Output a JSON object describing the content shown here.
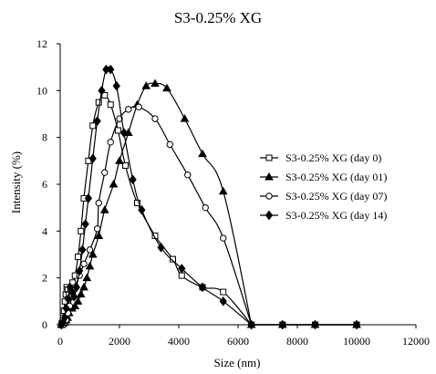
{
  "chart_data": {
    "type": "line",
    "title": "S3-0.25% XG",
    "xlabel": "Size (nm)",
    "ylabel": "Intensity  (%)",
    "xlim": [
      0,
      12000
    ],
    "ylim": [
      0,
      12
    ],
    "xticks": [
      0,
      2000,
      4000,
      6000,
      8000,
      10000,
      12000
    ],
    "yticks": [
      0,
      2,
      4,
      6,
      8,
      10,
      12
    ],
    "grid": false,
    "legend_position": "right",
    "series": [
      {
        "name": "S3-0.25% XG (day 0)",
        "marker": "square-open",
        "points": [
          [
            40,
            0
          ],
          [
            60,
            0.05
          ],
          [
            80,
            0.1
          ],
          [
            100,
            0.3
          ],
          [
            130,
            0.6
          ],
          [
            160,
            1.0
          ],
          [
            190,
            1.3
          ],
          [
            220,
            1.6
          ],
          [
            255,
            1.5
          ],
          [
            300,
            1.3
          ],
          [
            350,
            1.5
          ],
          [
            420,
            1.8
          ],
          [
            500,
            2.1
          ],
          [
            600,
            2.9
          ],
          [
            700,
            4.0
          ],
          [
            800,
            5.4
          ],
          [
            950,
            7.0
          ],
          [
            1100,
            8.5
          ],
          [
            1300,
            9.5
          ],
          [
            1500,
            9.8
          ],
          [
            1700,
            9.4
          ],
          [
            1950,
            8.3
          ],
          [
            2200,
            6.8
          ],
          [
            2600,
            5.2
          ],
          [
            3200,
            3.8
          ],
          [
            3800,
            2.8
          ],
          [
            4100,
            2.1
          ],
          [
            4800,
            1.6
          ],
          [
            5500,
            1.4
          ],
          [
            6450,
            0
          ],
          [
            7500,
            0
          ],
          [
            8600,
            0
          ],
          [
            10000,
            0
          ]
        ]
      },
      {
        "name": "S3-0.25% XG (day 01)",
        "marker": "triangle-filled",
        "points": [
          [
            40,
            0
          ],
          [
            100,
            0.05
          ],
          [
            150,
            0.1
          ],
          [
            200,
            0.2
          ],
          [
            250,
            0.3
          ],
          [
            300,
            0.5
          ],
          [
            400,
            0.7
          ],
          [
            500,
            0.8
          ],
          [
            600,
            1.0
          ],
          [
            700,
            1.3
          ],
          [
            800,
            1.6
          ],
          [
            900,
            2.0
          ],
          [
            1000,
            2.5
          ],
          [
            1100,
            3.0
          ],
          [
            1300,
            3.8
          ],
          [
            1500,
            4.9
          ],
          [
            1800,
            6.0
          ],
          [
            2000,
            7.0
          ],
          [
            2300,
            8.2
          ],
          [
            2600,
            9.4
          ],
          [
            2900,
            10.2
          ],
          [
            3200,
            10.3
          ],
          [
            3600,
            10.1
          ],
          [
            4200,
            8.8
          ],
          [
            4800,
            7.3
          ],
          [
            5500,
            5.7
          ],
          [
            6450,
            0
          ],
          [
            7500,
            0
          ],
          [
            8600,
            0
          ],
          [
            10000,
            0
          ]
        ]
      },
      {
        "name": "S3-0.25% XG (day 07)",
        "marker": "circle-open",
        "points": [
          [
            40,
            0
          ],
          [
            100,
            0
          ],
          [
            150,
            0.1
          ],
          [
            200,
            0.2
          ],
          [
            260,
            0.5
          ],
          [
            320,
            0.8
          ],
          [
            400,
            1.2
          ],
          [
            500,
            1.6
          ],
          [
            650,
            2.1
          ],
          [
            800,
            2.6
          ],
          [
            1000,
            3.2
          ],
          [
            1250,
            4.1
          ],
          [
            1300,
            5.2
          ],
          [
            1500,
            6.5
          ],
          [
            1700,
            7.8
          ],
          [
            2000,
            8.8
          ],
          [
            2300,
            9.2
          ],
          [
            2650,
            9.3
          ],
          [
            3200,
            8.8
          ],
          [
            3700,
            7.7
          ],
          [
            4300,
            6.4
          ],
          [
            4900,
            5.0
          ],
          [
            5500,
            3.7
          ],
          [
            6450,
            0
          ],
          [
            7500,
            0
          ],
          [
            8600,
            0
          ],
          [
            10000,
            0
          ]
        ]
      },
      {
        "name": "S3-0.25% XG (day 14)",
        "marker": "diamond-filled",
        "points": [
          [
            40,
            0
          ],
          [
            100,
            0.1
          ],
          [
            150,
            0.3
          ],
          [
            200,
            0.7
          ],
          [
            270,
            1.1
          ],
          [
            330,
            1.6
          ],
          [
            400,
            1.4
          ],
          [
            470,
            1.2
          ],
          [
            550,
            1.6
          ],
          [
            650,
            2.3
          ],
          [
            750,
            3.2
          ],
          [
            850,
            4.3
          ],
          [
            950,
            5.4
          ],
          [
            1100,
            7.1
          ],
          [
            1250,
            8.7
          ],
          [
            1400,
            10.0
          ],
          [
            1550,
            10.9
          ],
          [
            1700,
            10.9
          ],
          [
            1900,
            10.2
          ],
          [
            2150,
            8.2
          ],
          [
            2450,
            6.2
          ],
          [
            2750,
            4.9
          ],
          [
            3400,
            3.3
          ],
          [
            4100,
            2.4
          ],
          [
            4800,
            1.6
          ],
          [
            5500,
            1.0
          ],
          [
            6450,
            0
          ],
          [
            7500,
            0
          ],
          [
            8600,
            0
          ],
          [
            10000,
            0
          ]
        ]
      }
    ]
  }
}
